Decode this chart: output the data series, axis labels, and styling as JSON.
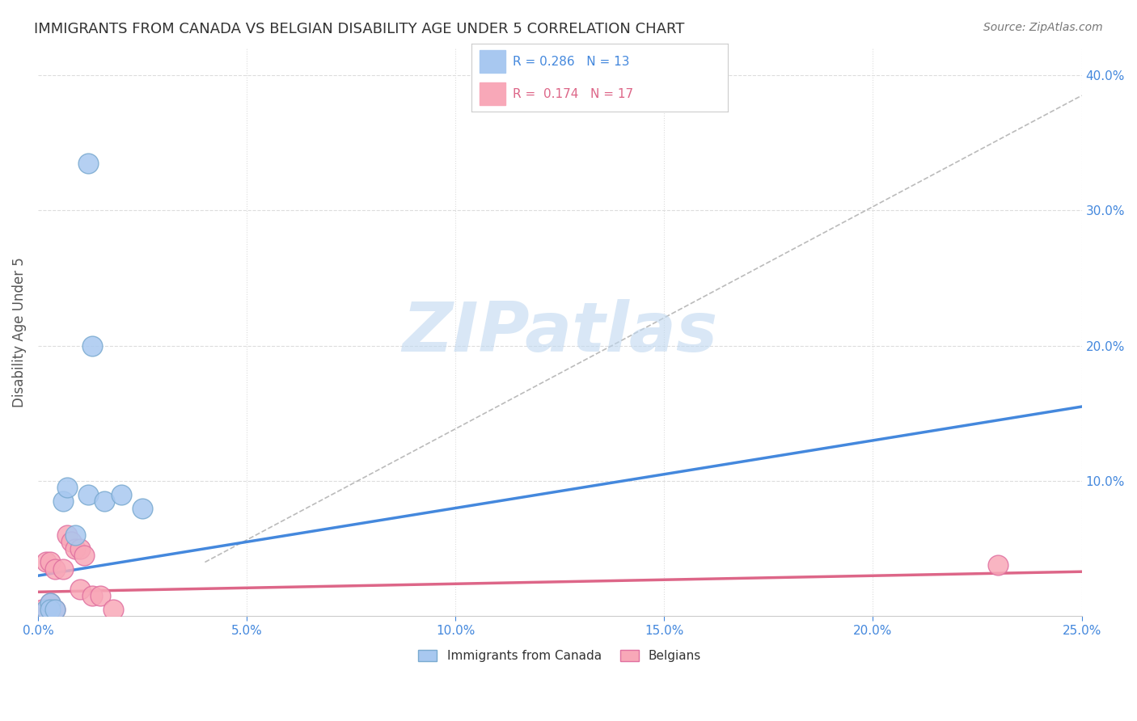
{
  "title": "IMMIGRANTS FROM CANADA VS BELGIAN DISABILITY AGE UNDER 5 CORRELATION CHART",
  "source": "Source: ZipAtlas.com",
  "ylabel": "Disability Age Under 5",
  "xlim": [
    0.0,
    0.25
  ],
  "ylim": [
    0.0,
    0.42
  ],
  "xtick_labels": [
    "0.0%",
    "5.0%",
    "10.0%",
    "15.0%",
    "20.0%",
    "25.0%"
  ],
  "xtick_vals": [
    0.0,
    0.05,
    0.1,
    0.15,
    0.2,
    0.25
  ],
  "ytick_labels": [
    "10.0%",
    "20.0%",
    "30.0%",
    "40.0%"
  ],
  "ytick_vals": [
    0.1,
    0.2,
    0.3,
    0.4
  ],
  "canada_points": [
    [
      0.002,
      0.005
    ],
    [
      0.003,
      0.01
    ],
    [
      0.003,
      0.005
    ],
    [
      0.004,
      0.005
    ],
    [
      0.006,
      0.085
    ],
    [
      0.007,
      0.095
    ],
    [
      0.009,
      0.06
    ],
    [
      0.012,
      0.09
    ],
    [
      0.013,
      0.2
    ],
    [
      0.016,
      0.085
    ],
    [
      0.02,
      0.09
    ],
    [
      0.025,
      0.08
    ],
    [
      0.012,
      0.335
    ]
  ],
  "belgian_points": [
    [
      0.001,
      0.005
    ],
    [
      0.002,
      0.04
    ],
    [
      0.003,
      0.04
    ],
    [
      0.003,
      0.01
    ],
    [
      0.004,
      0.005
    ],
    [
      0.004,
      0.035
    ],
    [
      0.006,
      0.035
    ],
    [
      0.007,
      0.06
    ],
    [
      0.008,
      0.055
    ],
    [
      0.009,
      0.05
    ],
    [
      0.01,
      0.05
    ],
    [
      0.01,
      0.02
    ],
    [
      0.011,
      0.045
    ],
    [
      0.013,
      0.015
    ],
    [
      0.015,
      0.015
    ],
    [
      0.018,
      0.005
    ],
    [
      0.23,
      0.038
    ]
  ],
  "canada_line_x": [
    0.0,
    0.25
  ],
  "canada_line_y": [
    0.03,
    0.155
  ],
  "canada_line_color": "#4488dd",
  "belgium_line_x": [
    0.0,
    0.25
  ],
  "belgium_line_y": [
    0.018,
    0.033
  ],
  "belgium_line_color": "#dd6688",
  "dashed_line_x": [
    0.04,
    0.25
  ],
  "dashed_line_y": [
    0.04,
    0.385
  ],
  "dashed_line_color": "#aaaaaa",
  "background_color": "#ffffff",
  "grid_color": "#dddddd",
  "title_color": "#333333",
  "title_fontsize": 13,
  "axis_label_color": "#4488dd",
  "watermark_text": "ZIPatlas",
  "watermark_color": "#c0d8f0",
  "canada_scatter_color": "#a8c8f0",
  "canada_scatter_edge": "#7aaad0",
  "belgian_scatter_color": "#f8a8b8",
  "belgian_scatter_edge": "#e070a0"
}
